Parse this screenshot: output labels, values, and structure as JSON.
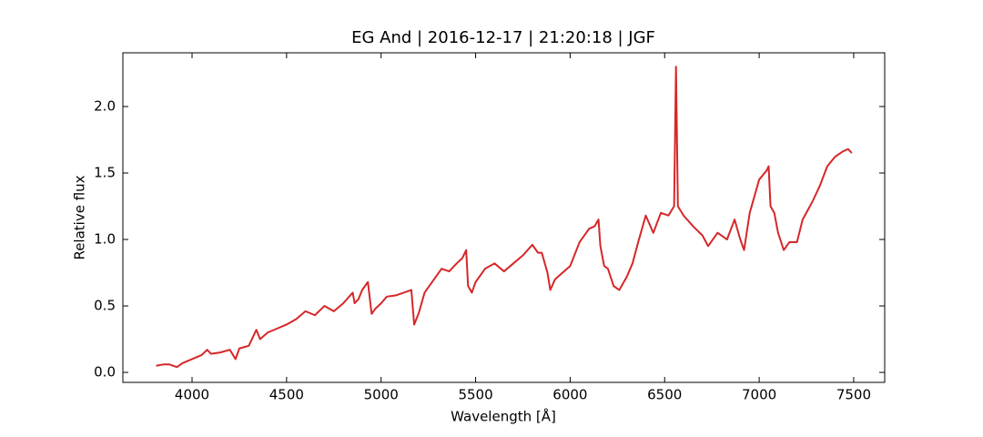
{
  "chart_data": {
    "type": "line",
    "title": "EG And | 2016-12-17 | 21:20:18 | JGF",
    "xlabel": "Wavelength [Å]",
    "ylabel": "Relative flux",
    "x": [
      3810,
      3850,
      3880,
      3920,
      3950,
      4000,
      4050,
      4080,
      4100,
      4150,
      4200,
      4230,
      4250,
      4300,
      4340,
      4360,
      4400,
      4450,
      4500,
      4550,
      4600,
      4650,
      4700,
      4750,
      4800,
      4850,
      4860,
      4880,
      4900,
      4930,
      4950,
      4970,
      5000,
      5030,
      5080,
      5120,
      5160,
      5175,
      5200,
      5230,
      5280,
      5320,
      5360,
      5400,
      5430,
      5450,
      5460,
      5480,
      5500,
      5550,
      5600,
      5650,
      5700,
      5750,
      5800,
      5830,
      5850,
      5880,
      5895,
      5920,
      5960,
      6000,
      6050,
      6100,
      6130,
      6150,
      6160,
      6180,
      6200,
      6230,
      6260,
      6300,
      6330,
      6360,
      6400,
      6440,
      6480,
      6520,
      6550,
      6560,
      6570,
      6600,
      6650,
      6700,
      6730,
      6780,
      6830,
      6870,
      6900,
      6920,
      6950,
      7000,
      7040,
      7050,
      7060,
      7080,
      7100,
      7130,
      7160,
      7200,
      7230,
      7280,
      7320,
      7360,
      7400,
      7440,
      7470,
      7490
    ],
    "series": [
      {
        "name": "Relative flux",
        "color": "#d62728",
        "values": [
          0.05,
          0.06,
          0.06,
          0.04,
          0.07,
          0.1,
          0.13,
          0.17,
          0.14,
          0.15,
          0.17,
          0.1,
          0.18,
          0.2,
          0.32,
          0.25,
          0.3,
          0.33,
          0.36,
          0.4,
          0.46,
          0.43,
          0.5,
          0.46,
          0.52,
          0.6,
          0.52,
          0.55,
          0.62,
          0.68,
          0.44,
          0.48,
          0.52,
          0.57,
          0.58,
          0.6,
          0.62,
          0.36,
          0.45,
          0.6,
          0.7,
          0.78,
          0.76,
          0.82,
          0.86,
          0.92,
          0.65,
          0.6,
          0.68,
          0.78,
          0.82,
          0.76,
          0.82,
          0.88,
          0.96,
          0.9,
          0.9,
          0.75,
          0.62,
          0.7,
          0.75,
          0.8,
          0.98,
          1.08,
          1.1,
          1.15,
          0.95,
          0.8,
          0.78,
          0.65,
          0.62,
          0.72,
          0.82,
          0.98,
          1.18,
          1.05,
          1.2,
          1.18,
          1.25,
          2.3,
          1.25,
          1.18,
          1.1,
          1.03,
          0.95,
          1.05,
          1.0,
          1.15,
          1.0,
          0.92,
          1.2,
          1.45,
          1.52,
          1.55,
          1.25,
          1.2,
          1.05,
          0.92,
          0.98,
          0.98,
          1.15,
          1.28,
          1.4,
          1.55,
          1.62,
          1.66,
          1.68,
          1.65
        ]
      }
    ],
    "xlim": [
      3634,
      7664
    ],
    "ylim": [
      -0.075,
      2.404
    ],
    "xticks": [
      4000,
      4500,
      5000,
      5500,
      6000,
      6500,
      7000,
      7500
    ],
    "yticks": [
      {
        "value": 0,
        "label": "0.0"
      },
      0.5,
      {
        "value": 1,
        "label": "1.0"
      },
      1.5,
      {
        "value": 2,
        "label": "2.0"
      }
    ]
  }
}
